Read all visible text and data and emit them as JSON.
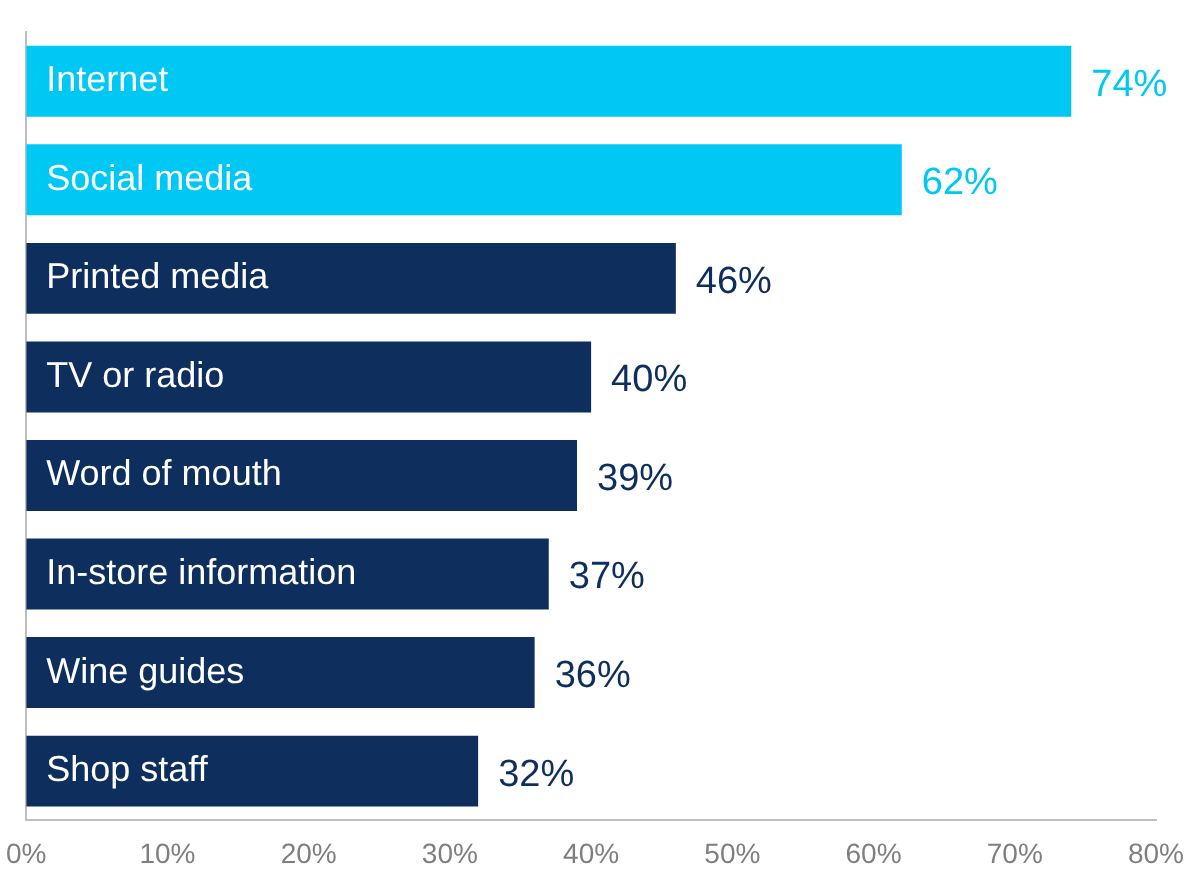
{
  "chart_data": {
    "type": "bar",
    "orientation": "horizontal",
    "categories": [
      "Internet",
      "Social media",
      "Printed media",
      "TV or radio",
      "Word of mouth",
      "In-store information",
      "Wine guides",
      "Shop staff"
    ],
    "values": [
      74,
      62,
      46,
      40,
      39,
      37,
      36,
      32
    ],
    "colors": [
      "#00c8f5",
      "#00c8f5",
      "#0e2f5e",
      "#0e2f5e",
      "#0e2f5e",
      "#0e2f5e",
      "#0e2f5e",
      "#0e2f5e"
    ],
    "value_labels": [
      "74%",
      "62%",
      "46%",
      "40%",
      "39%",
      "37%",
      "36%",
      "32%"
    ],
    "xlim": [
      0,
      80
    ],
    "xticks": [
      {
        "value": 0,
        "label": "0%"
      },
      {
        "value": 10,
        "label": "10%"
      },
      {
        "value": 20,
        "label": "20%"
      },
      {
        "value": 30,
        "label": "30%"
      },
      {
        "value": 40,
        "label": "40%"
      },
      {
        "value": 50,
        "label": "50%"
      },
      {
        "value": 60,
        "label": "60%"
      },
      {
        "value": 70,
        "label": "70%"
      },
      {
        "value": 80,
        "label": "80%"
      }
    ],
    "grid": false,
    "legend": false
  }
}
